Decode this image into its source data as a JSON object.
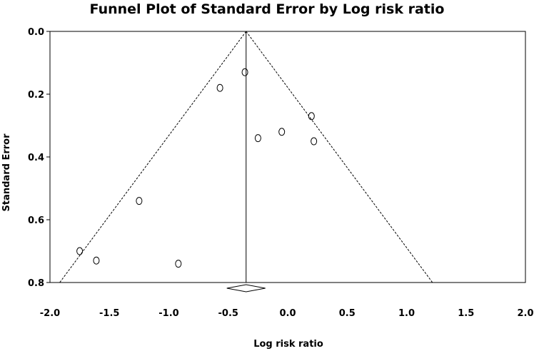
{
  "chart_data": {
    "type": "scatter",
    "title": "Funnel Plot of Standard Error by Log risk ratio",
    "xlabel": "Log risk ratio",
    "ylabel": "Standard Error",
    "xlim": [
      -2.0,
      2.0
    ],
    "ylim": [
      0.0,
      0.8
    ],
    "y_inverted": true,
    "x_ticks": [
      "-2.0",
      "-1.5",
      "-1.0",
      "-0.5",
      "0.0",
      "0.5",
      "1.0",
      "1.5",
      "2.0"
    ],
    "y_ticks": [
      "0.0",
      "0.2",
      "0.4",
      "0.6",
      "0.8"
    ],
    "grid": false,
    "legend": "none",
    "pooled_estimate": -0.35,
    "funnel_se_max": 0.8,
    "points": [
      {
        "x": -1.75,
        "y": 0.7
      },
      {
        "x": -1.61,
        "y": 0.73
      },
      {
        "x": -1.25,
        "y": 0.54
      },
      {
        "x": -0.92,
        "y": 0.74
      },
      {
        "x": -0.57,
        "y": 0.18
      },
      {
        "x": -0.36,
        "y": 0.13
      },
      {
        "x": -0.25,
        "y": 0.34
      },
      {
        "x": -0.05,
        "y": 0.32
      },
      {
        "x": 0.2,
        "y": 0.27
      },
      {
        "x": 0.22,
        "y": 0.35
      }
    ]
  }
}
